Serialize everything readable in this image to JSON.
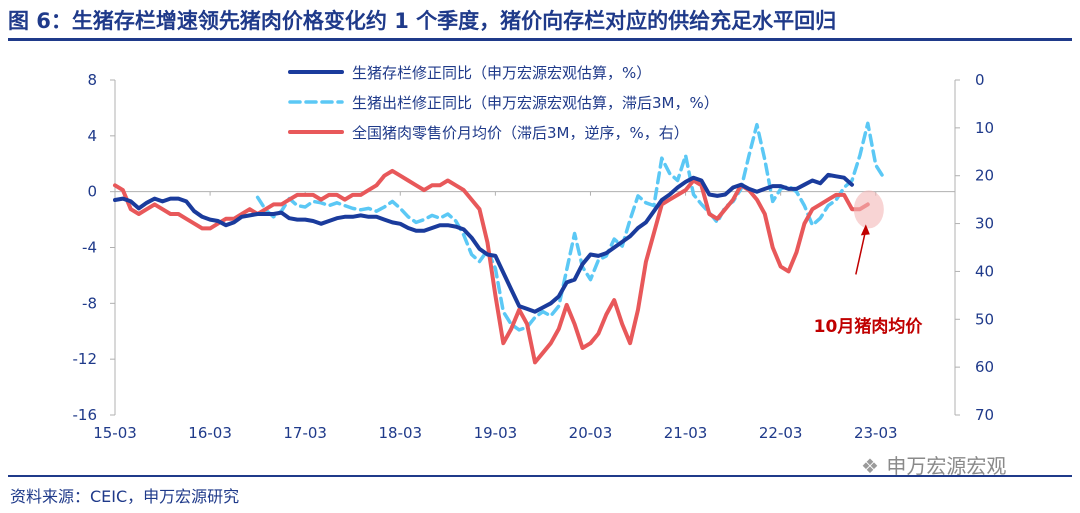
{
  "title": "图 6：生猪存栏增速领先猪肉价格变化约 1 个季度，猪价向存栏对应的供给充足水平回归",
  "source": "资料来源：CEIC，申万宏源研究",
  "watermark": {
    "text": "申万宏源宏观",
    "icon": "wechat-icon"
  },
  "colors": {
    "title": "#1f3a8a",
    "series1": "#1a3b9c",
    "series2": "#5bc8f5",
    "series3": "#e8585a",
    "annotation": "#c00000"
  },
  "chart_data": {
    "type": "line",
    "legend_position": "top-center",
    "grid": false,
    "x_ticks": [
      "15-03",
      "16-03",
      "17-03",
      "18-03",
      "19-03",
      "20-03",
      "21-03",
      "22-03",
      "23-03"
    ],
    "y_left": {
      "ticks": [
        8,
        4,
        0,
        -4,
        -8,
        -12,
        -16
      ],
      "range": [
        -16,
        8
      ]
    },
    "y_right": {
      "ticks": [
        0,
        10,
        20,
        30,
        40,
        50,
        60,
        70
      ],
      "range": [
        0,
        70
      ],
      "inverted": true
    },
    "series": [
      {
        "name": "生猪存栏修正同比（申万宏源宏观估算，%）",
        "axis": "left",
        "style": "solid-thick",
        "points": [
          [
            0,
            -0.6
          ],
          [
            1,
            -0.5
          ],
          [
            2,
            -0.7
          ],
          [
            3,
            -1.2
          ],
          [
            4,
            -0.8
          ],
          [
            5,
            -0.5
          ],
          [
            6,
            -0.7
          ],
          [
            7,
            -0.5
          ],
          [
            8,
            -0.5
          ],
          [
            9,
            -0.7
          ],
          [
            10,
            -1.4
          ],
          [
            11,
            -1.8
          ],
          [
            12,
            -2.0
          ],
          [
            13,
            -2.1
          ],
          [
            14,
            -2.4
          ],
          [
            15,
            -2.2
          ],
          [
            16,
            -1.8
          ],
          [
            17,
            -1.7
          ],
          [
            18,
            -1.6
          ],
          [
            19,
            -1.6
          ],
          [
            20,
            -1.6
          ],
          [
            21,
            -1.5
          ],
          [
            22,
            -1.9
          ],
          [
            23,
            -2.0
          ],
          [
            24,
            -2.0
          ],
          [
            25,
            -2.1
          ],
          [
            26,
            -2.3
          ],
          [
            27,
            -2.1
          ],
          [
            28,
            -1.9
          ],
          [
            29,
            -1.8
          ],
          [
            30,
            -1.8
          ],
          [
            31,
            -1.7
          ],
          [
            32,
            -1.8
          ],
          [
            33,
            -1.8
          ],
          [
            34,
            -2.0
          ],
          [
            35,
            -2.2
          ],
          [
            36,
            -2.3
          ],
          [
            37,
            -2.6
          ],
          [
            38,
            -2.8
          ],
          [
            39,
            -2.8
          ],
          [
            40,
            -2.6
          ],
          [
            41,
            -2.4
          ],
          [
            42,
            -2.4
          ],
          [
            43,
            -2.5
          ],
          [
            44,
            -2.7
          ],
          [
            45,
            -3.3
          ],
          [
            46,
            -4.1
          ],
          [
            47,
            -4.5
          ],
          [
            48,
            -4.6
          ],
          [
            49,
            -5.8
          ],
          [
            50,
            -7.0
          ],
          [
            51,
            -8.2
          ],
          [
            52,
            -8.4
          ],
          [
            53,
            -8.6
          ],
          [
            54,
            -8.3
          ],
          [
            55,
            -8.0
          ],
          [
            56,
            -7.5
          ],
          [
            57,
            -6.5
          ],
          [
            58,
            -6.3
          ],
          [
            59,
            -5.2
          ],
          [
            60,
            -4.5
          ],
          [
            61,
            -4.6
          ],
          [
            62,
            -4.4
          ],
          [
            63,
            -4.0
          ],
          [
            64,
            -3.6
          ],
          [
            65,
            -3.2
          ],
          [
            66,
            -2.6
          ],
          [
            67,
            -2.2
          ],
          [
            68,
            -1.4
          ],
          [
            69,
            -0.6
          ],
          [
            70,
            -0.2
          ],
          [
            71,
            0.3
          ],
          [
            72,
            0.7
          ],
          [
            73,
            1.0
          ],
          [
            74,
            0.8
          ],
          [
            75,
            -0.2
          ],
          [
            76,
            -0.3
          ],
          [
            77,
            -0.2
          ],
          [
            78,
            0.3
          ],
          [
            79,
            0.5
          ],
          [
            80,
            0.2
          ],
          [
            81,
            0.0
          ],
          [
            82,
            0.2
          ],
          [
            83,
            0.4
          ],
          [
            84,
            0.4
          ],
          [
            85,
            0.2
          ],
          [
            86,
            0.2
          ],
          [
            87,
            0.5
          ],
          [
            88,
            0.8
          ],
          [
            89,
            0.6
          ],
          [
            90,
            1.2
          ],
          [
            91,
            1.1
          ],
          [
            92,
            1.0
          ],
          [
            93,
            0.5
          ]
        ]
      },
      {
        "name": "生猪出栏修正同比（申万宏源宏观估算，滞后3M，%）",
        "axis": "left",
        "style": "dashed",
        "points": [
          [
            18,
            -0.4
          ],
          [
            19,
            -1.3
          ],
          [
            20,
            -1.8
          ],
          [
            21,
            -1.4
          ],
          [
            22,
            -0.5
          ],
          [
            23,
            -1.0
          ],
          [
            24,
            -1.1
          ],
          [
            25,
            -0.7
          ],
          [
            26,
            -0.8
          ],
          [
            27,
            -1.0
          ],
          [
            28,
            -0.8
          ],
          [
            29,
            -1.0
          ],
          [
            30,
            -1.2
          ],
          [
            31,
            -1.3
          ],
          [
            32,
            -1.2
          ],
          [
            33,
            -1.4
          ],
          [
            34,
            -1.1
          ],
          [
            35,
            -0.7
          ],
          [
            36,
            -1.2
          ],
          [
            37,
            -1.8
          ],
          [
            38,
            -2.2
          ],
          [
            39,
            -2.0
          ],
          [
            40,
            -1.7
          ],
          [
            41,
            -1.9
          ],
          [
            42,
            -1.6
          ],
          [
            43,
            -2.1
          ],
          [
            44,
            -3.1
          ],
          [
            45,
            -4.5
          ],
          [
            46,
            -5.0
          ],
          [
            47,
            -4.2
          ],
          [
            48,
            -5.5
          ],
          [
            49,
            -8.6
          ],
          [
            50,
            -9.5
          ],
          [
            51,
            -9.9
          ],
          [
            52,
            -9.7
          ],
          [
            53,
            -9.0
          ],
          [
            54,
            -8.6
          ],
          [
            55,
            -8.9
          ],
          [
            56,
            -8.2
          ],
          [
            57,
            -5.6
          ],
          [
            58,
            -3.0
          ],
          [
            59,
            -5.4
          ],
          [
            60,
            -6.3
          ],
          [
            61,
            -4.9
          ],
          [
            62,
            -4.6
          ],
          [
            63,
            -3.4
          ],
          [
            64,
            -3.9
          ],
          [
            65,
            -2.0
          ],
          [
            66,
            -0.3
          ],
          [
            67,
            -0.8
          ],
          [
            68,
            -1.0
          ],
          [
            69,
            2.4
          ],
          [
            70,
            1.3
          ],
          [
            71,
            0.8
          ],
          [
            72,
            2.6
          ],
          [
            73,
            -0.2
          ],
          [
            74,
            -0.9
          ],
          [
            75,
            -1.5
          ],
          [
            76,
            -2.2
          ],
          [
            77,
            -1.1
          ],
          [
            78,
            -0.7
          ],
          [
            79,
            0.2
          ],
          [
            80,
            2.6
          ],
          [
            81,
            4.8
          ],
          [
            82,
            2.3
          ],
          [
            83,
            -0.7
          ],
          [
            84,
            0.2
          ],
          [
            85,
            0.4
          ],
          [
            86,
            0.0
          ],
          [
            87,
            -1.0
          ],
          [
            88,
            -2.4
          ],
          [
            89,
            -1.9
          ],
          [
            90,
            -1.0
          ],
          [
            91,
            -0.6
          ],
          [
            92,
            0.3
          ],
          [
            93,
            0.8
          ],
          [
            94,
            2.6
          ],
          [
            95,
            4.9
          ],
          [
            96,
            1.9
          ],
          [
            97,
            1.0
          ]
        ]
      },
      {
        "name": "全国猪肉零售价月均价（滞后3M，逆序，%，右）",
        "axis": "right",
        "style": "solid",
        "points": [
          [
            0,
            22
          ],
          [
            1,
            23
          ],
          [
            2,
            27
          ],
          [
            3,
            28
          ],
          [
            4,
            27
          ],
          [
            5,
            26
          ],
          [
            6,
            27
          ],
          [
            7,
            28
          ],
          [
            8,
            28
          ],
          [
            9,
            29
          ],
          [
            10,
            30
          ],
          [
            11,
            31
          ],
          [
            12,
            31
          ],
          [
            13,
            30
          ],
          [
            14,
            29
          ],
          [
            15,
            29
          ],
          [
            16,
            28
          ],
          [
            17,
            27
          ],
          [
            18,
            28
          ],
          [
            19,
            27
          ],
          [
            20,
            26
          ],
          [
            21,
            26
          ],
          [
            22,
            25
          ],
          [
            23,
            24
          ],
          [
            24,
            24
          ],
          [
            25,
            24
          ],
          [
            26,
            25
          ],
          [
            27,
            24
          ],
          [
            28,
            24
          ],
          [
            29,
            25
          ],
          [
            30,
            24
          ],
          [
            31,
            24
          ],
          [
            32,
            23
          ],
          [
            33,
            22
          ],
          [
            34,
            20
          ],
          [
            35,
            19
          ],
          [
            36,
            20
          ],
          [
            37,
            21
          ],
          [
            38,
            22
          ],
          [
            39,
            23
          ],
          [
            40,
            22
          ],
          [
            41,
            22
          ],
          [
            42,
            21
          ],
          [
            43,
            22
          ],
          [
            44,
            23
          ],
          [
            45,
            25
          ],
          [
            46,
            27
          ],
          [
            47,
            34
          ],
          [
            48,
            45
          ],
          [
            49,
            55
          ],
          [
            50,
            52
          ],
          [
            51,
            48
          ],
          [
            52,
            51
          ],
          [
            53,
            59
          ],
          [
            54,
            57
          ],
          [
            55,
            55
          ],
          [
            56,
            52
          ],
          [
            57,
            47
          ],
          [
            58,
            51
          ],
          [
            59,
            56
          ],
          [
            60,
            55
          ],
          [
            61,
            53
          ],
          [
            62,
            49
          ],
          [
            63,
            46
          ],
          [
            64,
            51
          ],
          [
            65,
            55
          ],
          [
            66,
            48
          ],
          [
            67,
            38
          ],
          [
            68,
            32
          ],
          [
            69,
            26
          ],
          [
            70,
            25
          ],
          [
            71,
            24
          ],
          [
            72,
            23
          ],
          [
            73,
            21
          ],
          [
            74,
            22
          ],
          [
            75,
            28
          ],
          [
            76,
            29
          ],
          [
            77,
            27
          ],
          [
            78,
            25
          ],
          [
            79,
            22
          ],
          [
            80,
            23
          ],
          [
            81,
            25
          ],
          [
            82,
            28
          ],
          [
            83,
            35
          ],
          [
            84,
            39
          ],
          [
            85,
            40
          ],
          [
            86,
            36
          ],
          [
            87,
            30
          ],
          [
            88,
            27
          ],
          [
            89,
            26
          ],
          [
            90,
            25
          ],
          [
            91,
            24
          ],
          [
            92,
            24
          ],
          [
            93,
            27
          ],
          [
            94,
            27
          ],
          [
            95,
            26
          ]
        ]
      }
    ],
    "annotation": {
      "text": "10月猪肉均价"
    }
  }
}
